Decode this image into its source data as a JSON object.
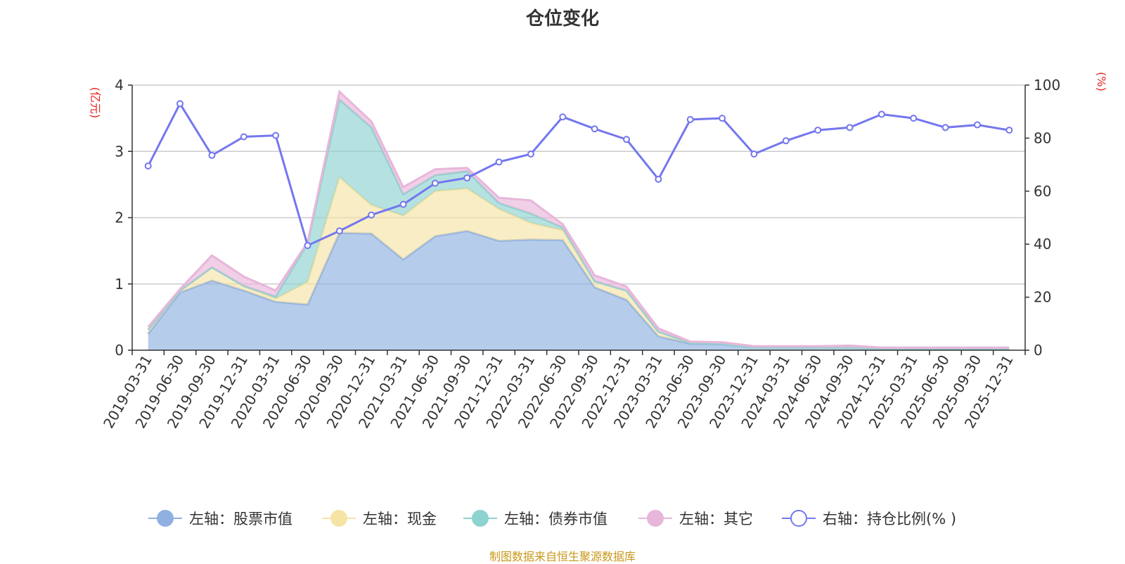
{
  "title": "仓位变化",
  "footer": "制图数据来自恒生聚源数据库",
  "chart_data": {
    "type": "area",
    "title": "仓位变化",
    "categories": [
      "2019-03-31",
      "2019-06-30",
      "2019-09-30",
      "2019-12-31",
      "2020-03-31",
      "2020-06-30",
      "2020-09-30",
      "2020-12-31",
      "2021-03-31",
      "2021-06-30",
      "2021-09-30",
      "2021-12-31",
      "2022-03-31",
      "2022-06-30",
      "2022-09-30",
      "2022-12-31",
      "2023-03-31",
      "2023-06-30",
      "2023-09-30",
      "2023-12-31",
      "2024-03-31",
      "2024-06-30",
      "2024-09-30",
      "2024-12-31",
      "2025-03-31",
      "2025-06-30",
      "2025-09-30",
      "2025-12-31"
    ],
    "left_axis": {
      "unit": "(亿元)",
      "ylim": [
        0,
        4
      ],
      "ticks": [
        "0",
        "1",
        "2",
        "3",
        "4"
      ]
    },
    "right_axis": {
      "unit": "(%)",
      "ylim": [
        0,
        100
      ],
      "ticks": [
        "0",
        "20",
        "40",
        "60",
        "80",
        "100"
      ]
    },
    "series": [
      {
        "name": "左轴：股票市值",
        "axis": "left",
        "color": "#8fb0e0",
        "values": [
          0.25,
          0.87,
          1.05,
          0.9,
          0.73,
          0.69,
          1.77,
          1.76,
          1.37,
          1.72,
          1.8,
          1.65,
          1.67,
          1.66,
          0.95,
          0.76,
          0.21,
          0.1,
          0.09,
          0.04,
          0.04,
          0.04,
          0.04,
          0.02,
          0.02,
          0.02,
          0.02,
          0.02
        ]
      },
      {
        "name": "左轴：现金",
        "axis": "left",
        "color": "#f6e3a6",
        "values": [
          0.06,
          0.03,
          0.2,
          0.07,
          0.05,
          0.34,
          0.84,
          0.43,
          0.66,
          0.68,
          0.64,
          0.48,
          0.25,
          0.15,
          0.09,
          0.14,
          0.07,
          0.01,
          0.01,
          0.0,
          0.0,
          0.0,
          0.0,
          0.0,
          0.0,
          0.0,
          0.0,
          0.0
        ]
      },
      {
        "name": "左轴：债券市值",
        "axis": "left",
        "color": "#8dd3cf",
        "values": [
          0.0,
          0.0,
          0.0,
          0.0,
          0.03,
          0.58,
          1.17,
          1.17,
          0.32,
          0.24,
          0.26,
          0.09,
          0.14,
          0.04,
          0.0,
          0.0,
          0.0,
          0.0,
          0.0,
          0.0,
          0.0,
          0.0,
          0.0,
          0.0,
          0.0,
          0.0,
          0.0,
          0.0
        ]
      },
      {
        "name": "左轴：其它",
        "axis": "left",
        "color": "#e8b6da",
        "values": [
          0.04,
          0.02,
          0.18,
          0.14,
          0.09,
          0.02,
          0.12,
          0.09,
          0.11,
          0.09,
          0.05,
          0.08,
          0.2,
          0.05,
          0.09,
          0.06,
          0.05,
          0.02,
          0.02,
          0.02,
          0.02,
          0.02,
          0.03,
          0.02,
          0.02,
          0.02,
          0.02,
          0.02
        ]
      },
      {
        "name": "右轴：持仓比例(%)",
        "axis": "right",
        "type": "line",
        "color": "#7477ee",
        "values": [
          69.5,
          93.0,
          73.5,
          80.5,
          81.0,
          39.5,
          45.0,
          51.0,
          55.0,
          63.0,
          65.0,
          71.0,
          74.0,
          88.0,
          83.5,
          79.5,
          64.5,
          87.0,
          87.5,
          74.0,
          79.0,
          83.0,
          84.0,
          89.0,
          87.5,
          84.0,
          85.0,
          83.0
        ]
      }
    ],
    "legend": [
      "左轴：股票市值",
      "左轴：现金",
      "左轴：债券市值",
      "左轴：其它",
      "右轴：持仓比例(% )"
    ],
    "grid": true
  }
}
